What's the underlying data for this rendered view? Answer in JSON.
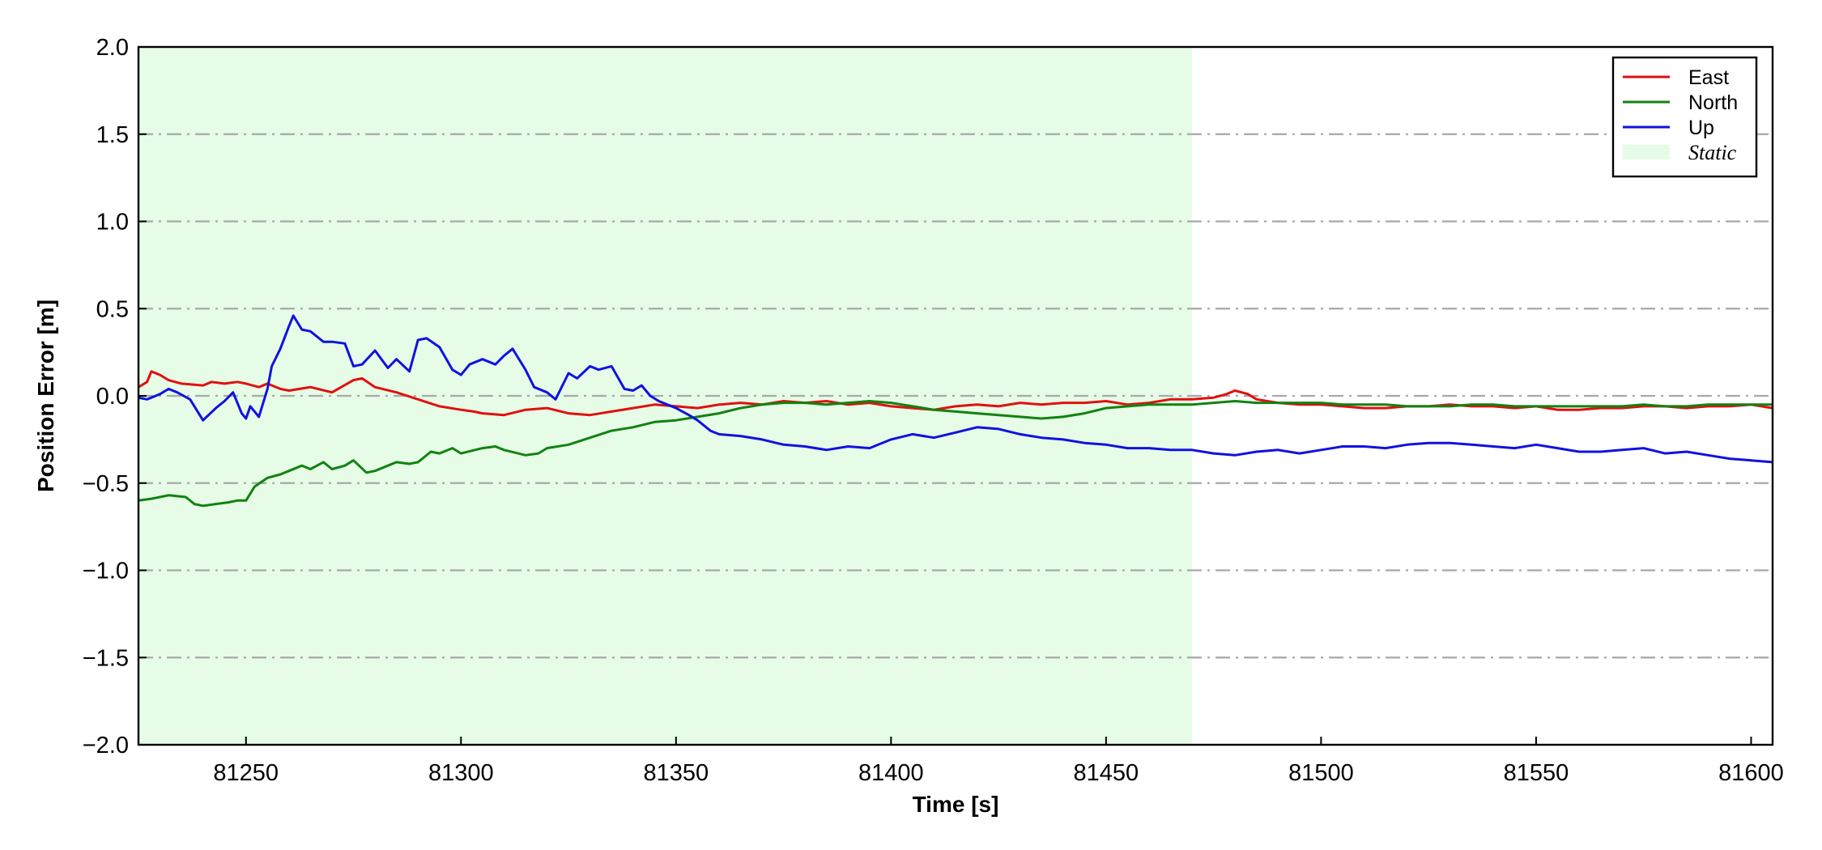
{
  "chart_data": {
    "type": "line",
    "title": "",
    "xlabel": "Time [s]",
    "ylabel": "Position Error [m]",
    "xlim": [
      81225,
      81605
    ],
    "ylim": [
      -2.0,
      2.0
    ],
    "xticks": [
      81250,
      81300,
      81350,
      81400,
      81450,
      81500,
      81550,
      81600
    ],
    "xtick_labels": [
      "81250",
      "81300",
      "81350",
      "81400",
      "81450",
      "81500",
      "81550",
      "81600"
    ],
    "yticks": [
      2.0,
      1.5,
      1.0,
      0.5,
      0.0,
      -0.5,
      -1.0,
      -1.5,
      -2.0
    ],
    "ytick_labels": [
      "2.0",
      "1.5",
      "1.0",
      "0.5",
      "0.0",
      "−0.5",
      "−1.0",
      "−1.5",
      "−2.0"
    ],
    "grid": "horizontal dash-dot",
    "legend_position": "top-right",
    "static_region": {
      "label": "Static",
      "x_start": 81225,
      "x_end": 81470,
      "color": "#e6fce6"
    },
    "series": [
      {
        "name": "East",
        "color": "#e01010",
        "x": [
          81225,
          81227,
          81228,
          81230,
          81232,
          81235,
          81240,
          81242,
          81245,
          81248,
          81250,
          81253,
          81255,
          81258,
          81260,
          81265,
          81270,
          81275,
          81277,
          81280,
          81285,
          81290,
          81295,
          81300,
          81303,
          81305,
          81310,
          81315,
          81320,
          81325,
          81330,
          81335,
          81340,
          81345,
          81350,
          81355,
          81360,
          81365,
          81370,
          81375,
          81380,
          81385,
          81390,
          81395,
          81400,
          81405,
          81410,
          81415,
          81420,
          81425,
          81430,
          81435,
          81440,
          81445,
          81450,
          81455,
          81460,
          81465,
          81470,
          81475,
          81478,
          81480,
          81483,
          81485,
          81490,
          81495,
          81500,
          81505,
          81510,
          81515,
          81520,
          81525,
          81530,
          81535,
          81540,
          81545,
          81550,
          81555,
          81560,
          81565,
          81570,
          81575,
          81580,
          81585,
          81590,
          81595,
          81600,
          81605
        ],
        "y": [
          0.05,
          0.08,
          0.14,
          0.12,
          0.09,
          0.07,
          0.06,
          0.08,
          0.07,
          0.08,
          0.07,
          0.05,
          0.07,
          0.04,
          0.03,
          0.05,
          0.02,
          0.09,
          0.1,
          0.05,
          0.02,
          -0.02,
          -0.06,
          -0.08,
          -0.09,
          -0.1,
          -0.11,
          -0.08,
          -0.07,
          -0.1,
          -0.11,
          -0.09,
          -0.07,
          -0.05,
          -0.06,
          -0.07,
          -0.05,
          -0.04,
          -0.05,
          -0.03,
          -0.04,
          -0.03,
          -0.05,
          -0.04,
          -0.06,
          -0.07,
          -0.08,
          -0.06,
          -0.05,
          -0.06,
          -0.04,
          -0.05,
          -0.04,
          -0.04,
          -0.03,
          -0.05,
          -0.04,
          -0.02,
          -0.02,
          -0.01,
          0.01,
          0.03,
          0.01,
          -0.02,
          -0.04,
          -0.05,
          -0.05,
          -0.06,
          -0.07,
          -0.07,
          -0.06,
          -0.06,
          -0.05,
          -0.06,
          -0.06,
          -0.07,
          -0.06,
          -0.08,
          -0.08,
          -0.07,
          -0.07,
          -0.06,
          -0.06,
          -0.07,
          -0.06,
          -0.06,
          -0.05,
          -0.07
        ]
      },
      {
        "name": "North",
        "color": "#118211",
        "x": [
          81225,
          81228,
          81232,
          81236,
          81238,
          81240,
          81243,
          81246,
          81248,
          81250,
          81252,
          81255,
          81258,
          81260,
          81263,
          81265,
          81268,
          81270,
          81273,
          81275,
          81278,
          81280,
          81283,
          81285,
          81288,
          81290,
          81293,
          81295,
          81298,
          81300,
          81305,
          81308,
          81310,
          81315,
          81318,
          81320,
          81325,
          81330,
          81335,
          81340,
          81345,
          81350,
          81355,
          81360,
          81365,
          81370,
          81375,
          81380,
          81385,
          81390,
          81395,
          81400,
          81405,
          81410,
          81415,
          81420,
          81425,
          81430,
          81435,
          81440,
          81445,
          81450,
          81455,
          81460,
          81465,
          81470,
          81475,
          81480,
          81485,
          81490,
          81495,
          81500,
          81505,
          81510,
          81515,
          81520,
          81525,
          81530,
          81535,
          81540,
          81545,
          81550,
          81555,
          81560,
          81565,
          81570,
          81575,
          81580,
          81585,
          81590,
          81595,
          81600,
          81605
        ],
        "y": [
          -0.6,
          -0.59,
          -0.57,
          -0.58,
          -0.62,
          -0.63,
          -0.62,
          -0.61,
          -0.6,
          -0.6,
          -0.52,
          -0.47,
          -0.45,
          -0.43,
          -0.4,
          -0.42,
          -0.38,
          -0.42,
          -0.4,
          -0.37,
          -0.44,
          -0.43,
          -0.4,
          -0.38,
          -0.39,
          -0.38,
          -0.32,
          -0.33,
          -0.3,
          -0.33,
          -0.3,
          -0.29,
          -0.31,
          -0.34,
          -0.33,
          -0.3,
          -0.28,
          -0.24,
          -0.2,
          -0.18,
          -0.15,
          -0.14,
          -0.12,
          -0.1,
          -0.07,
          -0.05,
          -0.04,
          -0.04,
          -0.05,
          -0.04,
          -0.03,
          -0.04,
          -0.06,
          -0.08,
          -0.09,
          -0.1,
          -0.11,
          -0.12,
          -0.13,
          -0.12,
          -0.1,
          -0.07,
          -0.06,
          -0.05,
          -0.05,
          -0.05,
          -0.04,
          -0.03,
          -0.04,
          -0.04,
          -0.04,
          -0.04,
          -0.05,
          -0.05,
          -0.05,
          -0.06,
          -0.06,
          -0.06,
          -0.05,
          -0.05,
          -0.06,
          -0.06,
          -0.06,
          -0.06,
          -0.06,
          -0.06,
          -0.05,
          -0.06,
          -0.06,
          -0.05,
          -0.05,
          -0.05,
          -0.05
        ]
      },
      {
        "name": "Up",
        "color": "#1111e0",
        "x": [
          81225,
          81227,
          81228,
          81230,
          81232,
          81234,
          81237,
          81240,
          81243,
          81245,
          81247,
          81249,
          81250,
          81251,
          81253,
          81255,
          81256,
          81258,
          81260,
          81261,
          81263,
          81265,
          81268,
          81270,
          81273,
          81275,
          81277,
          81280,
          81283,
          81285,
          81288,
          81290,
          81292,
          81295,
          81298,
          81300,
          81302,
          81305,
          81308,
          81310,
          81312,
          81315,
          81317,
          81320,
          81322,
          81325,
          81327,
          81330,
          81332,
          81335,
          81338,
          81340,
          81342,
          81344,
          81346,
          81348,
          81350,
          81353,
          81355,
          81358,
          81360,
          81365,
          81370,
          81375,
          81380,
          81385,
          81390,
          81395,
          81400,
          81405,
          81410,
          81415,
          81420,
          81425,
          81430,
          81435,
          81440,
          81445,
          81450,
          81455,
          81460,
          81465,
          81470,
          81475,
          81480,
          81485,
          81490,
          81495,
          81500,
          81505,
          81510,
          81515,
          81520,
          81525,
          81530,
          81535,
          81540,
          81545,
          81550,
          81555,
          81560,
          81565,
          81570,
          81575,
          81580,
          81585,
          81590,
          81595,
          81600,
          81605
        ],
        "y": [
          -0.01,
          -0.02,
          -0.01,
          0.01,
          0.04,
          0.02,
          -0.02,
          -0.14,
          -0.07,
          -0.03,
          0.02,
          -0.1,
          -0.13,
          -0.06,
          -0.12,
          0.04,
          0.17,
          0.27,
          0.4,
          0.46,
          0.38,
          0.37,
          0.31,
          0.31,
          0.3,
          0.17,
          0.18,
          0.26,
          0.16,
          0.21,
          0.14,
          0.32,
          0.33,
          0.28,
          0.15,
          0.12,
          0.18,
          0.21,
          0.18,
          0.23,
          0.27,
          0.15,
          0.05,
          0.02,
          -0.02,
          0.13,
          0.1,
          0.17,
          0.15,
          0.17,
          0.04,
          0.03,
          0.06,
          0.0,
          -0.03,
          -0.05,
          -0.07,
          -0.11,
          -0.14,
          -0.2,
          -0.22,
          -0.23,
          -0.25,
          -0.28,
          -0.29,
          -0.31,
          -0.29,
          -0.3,
          -0.25,
          -0.22,
          -0.24,
          -0.21,
          -0.18,
          -0.19,
          -0.22,
          -0.24,
          -0.25,
          -0.27,
          -0.28,
          -0.3,
          -0.3,
          -0.31,
          -0.31,
          -0.33,
          -0.34,
          -0.32,
          -0.31,
          -0.33,
          -0.31,
          -0.29,
          -0.29,
          -0.3,
          -0.28,
          -0.27,
          -0.27,
          -0.28,
          -0.29,
          -0.3,
          -0.28,
          -0.3,
          -0.32,
          -0.32,
          -0.31,
          -0.3,
          -0.33,
          -0.32,
          -0.34,
          -0.36,
          -0.37,
          -0.38
        ]
      }
    ]
  }
}
